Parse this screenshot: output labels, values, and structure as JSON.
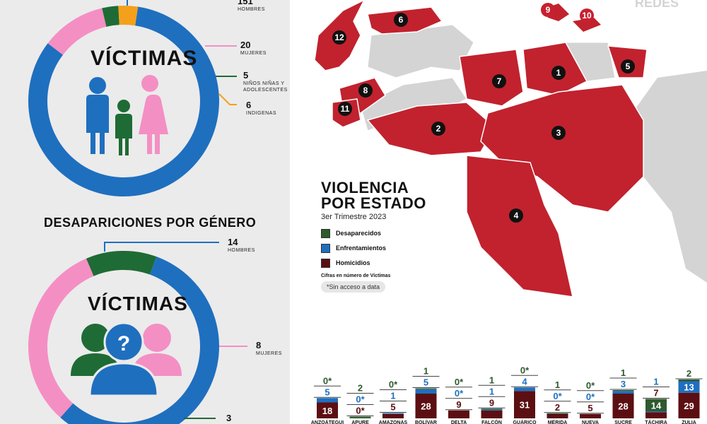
{
  "donut1": {
    "title": "VÍCTIMAS",
    "segments": [
      {
        "key": "hombres",
        "value": 151,
        "label": "HOMBRES",
        "color": "#1f6fbf"
      },
      {
        "key": "mujeres",
        "value": 20,
        "label": "MUJERES",
        "color": "#f48fc4"
      },
      {
        "key": "ninos",
        "value": 5,
        "label": "NIÑOS NIÑAS Y ADOLESCENTES",
        "color": "#1f6b35"
      },
      {
        "key": "indigenas",
        "value": 6,
        "label": "INDIGENAS",
        "color": "#f5a01a"
      }
    ],
    "labels": {
      "hombres_num": "151",
      "hombres_txt": "HOMBRES",
      "mujeres_num": "20",
      "mujeres_txt": "MUJERES",
      "ninos_num": "5",
      "ninos_txt1": "NIÑOS NIÑAS Y",
      "ninos_txt2": "ADOLESCENTES",
      "indigenas_num": "6",
      "indigenas_txt": "INDIGENAS"
    }
  },
  "desapariciones": {
    "section_title": "DESAPARICIONES POR GÉNERO",
    "title": "VÍCTIMAS",
    "segments": [
      {
        "key": "hombres",
        "value": 14,
        "label": "HOMBRES",
        "color": "#1f6fbf"
      },
      {
        "key": "mujeres",
        "value": 8,
        "label": "MUJERES",
        "color": "#f48fc4"
      },
      {
        "key": "otros",
        "value": 3,
        "label": "",
        "color": "#1f6b35"
      }
    ],
    "labels": {
      "hombres_num": "14",
      "hombres_txt": "HOMBRES",
      "mujeres_num": "8",
      "mujeres_txt": "MUJERES",
      "otros_num": "3"
    }
  },
  "map": {
    "title_line1": "VIOLENCIA",
    "title_line2": "POR ESTADO",
    "subtitle": "3er Trimestre 2023",
    "legend": [
      {
        "label": "Desaparecidos",
        "color": "#2e5a2e"
      },
      {
        "label": "Enfrentamientos",
        "color": "#1f6fbf"
      },
      {
        "label": "Homicidios",
        "color": "#5c0f12"
      }
    ],
    "note": "Cifras en número de Víctimas",
    "no_access": "*Sin acceso a data",
    "markers": [
      "1",
      "2",
      "3",
      "4",
      "5",
      "6",
      "7",
      "8",
      "9",
      "10",
      "11",
      "12"
    ],
    "brand": "REDES",
    "state_color": "#c1222e",
    "land_color": "#d4d4d4"
  },
  "chart_data": {
    "type": "bar",
    "categories": [
      "ANZOÁTEGUI",
      "APURE",
      "AMAZONAS",
      "BOLÍVAR",
      "DELTA",
      "FALCÓN",
      "GUÁRICO",
      "MÉRIDA",
      "NUEVA",
      "SUCRE",
      "TÁCHIRA",
      "ZULIA"
    ],
    "series": [
      {
        "name": "Homicidios",
        "values": [
          18,
          0,
          5,
          28,
          9,
          9,
          31,
          2,
          5,
          28,
          7,
          29
        ],
        "labels": [
          "18",
          "0*",
          "5",
          "28",
          "9",
          "9",
          "31",
          "2",
          "5",
          "28",
          "7",
          "29"
        ]
      },
      {
        "name": "Enfrentamientos",
        "values": [
          5,
          0,
          1,
          5,
          0,
          1,
          4,
          0,
          0,
          3,
          1,
          13
        ],
        "labels": [
          "5",
          "0*",
          "1",
          "5",
          "0*",
          "1",
          "4",
          "0*",
          "0*",
          "3",
          "1",
          "13"
        ]
      },
      {
        "name": "Desaparecidos",
        "values": [
          0,
          2,
          0,
          1,
          0,
          1,
          0,
          1,
          0,
          1,
          14,
          2
        ],
        "labels": [
          "0*",
          "2",
          "0*",
          "1",
          "0*",
          "1",
          "0*",
          "1",
          "0*",
          "1",
          "14",
          "2"
        ]
      }
    ],
    "colors": {
      "Homicidios": "#5c0f12",
      "Enfrentamientos": "#1f6fbf",
      "Desaparecidos": "#2e5a2e"
    }
  }
}
